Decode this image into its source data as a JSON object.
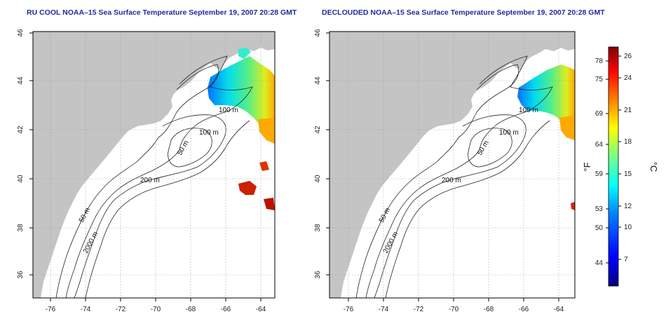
{
  "panels": [
    {
      "id": "left",
      "title": "RU COOL NOAA–15 Sea Surface Temperature September 19, 2007 20:28 GMT",
      "contour_labels": [
        "100 m",
        "100 m",
        "50 m",
        "200 m",
        "50 m",
        "2000 m"
      ]
    },
    {
      "id": "right",
      "title": "DECLOUDED NOAA–15 Sea Surface Temperature September 19, 2007 20:28 GMT",
      "contour_labels": [
        "100 m",
        "100 m",
        "50 m",
        "200 m",
        "50 m",
        "2000 m"
      ]
    }
  ],
  "map": {
    "lon_ticks": [
      "-76",
      "-74",
      "-72",
      "-70",
      "-68",
      "-66",
      "-64"
    ],
    "lat_ticks": [
      "46",
      "44",
      "42",
      "40",
      "38",
      "36"
    ],
    "lon_range": [
      -77,
      -63
    ],
    "lat_range": [
      35,
      46
    ],
    "land_color": "#c4c4c4",
    "ocean_color": "#ffffff",
    "grid": "dotted"
  },
  "colorbar": {
    "fahrenheit_ticks": [
      "78",
      "75",
      "69",
      "64",
      "59",
      "53",
      "50",
      "44"
    ],
    "celsius_ticks": [
      "26",
      "24",
      "21",
      "18",
      "15",
      "12",
      "10",
      "7"
    ],
    "fahrenheit_unit": "°F",
    "celsius_unit": "°C",
    "celsius_range": [
      4,
      27
    ],
    "colors": [
      "#00007f",
      "#0000ff",
      "#007fff",
      "#00ffff",
      "#7fff7f",
      "#ffff00",
      "#ff7f00",
      "#ff0000",
      "#7f0000"
    ]
  }
}
